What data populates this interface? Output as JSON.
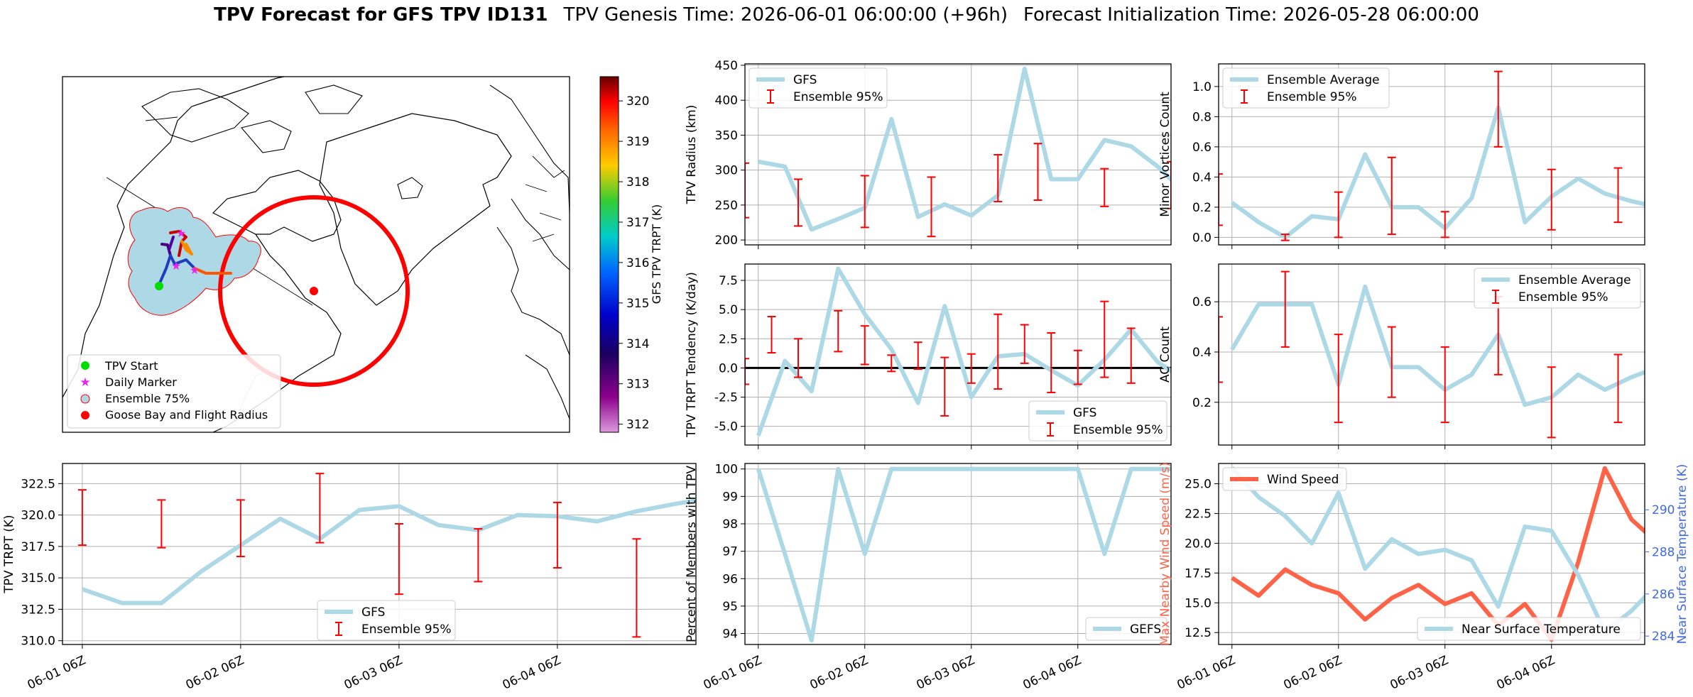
{
  "title": {
    "main": "TPV Forecast for GFS TPV ID131",
    "genesis": "TPV Genesis Time: 2026-06-01 06:00:00 (+96h)",
    "init": "Forecast Initialization Time: 2026-05-28 06:00:00"
  },
  "time_ticks": [
    "06-01 06Z",
    "06-02 06Z",
    "06-03 06Z",
    "06-04 06Z"
  ],
  "map": {
    "legend": [
      "TPV Start",
      "Daily Marker",
      "Ensemble 75%",
      "Goose Bay and Flight Radius"
    ],
    "colors": {
      "start": "#00dd00",
      "marker": "#ee22ee",
      "ensemble": "#add8e6",
      "goose_bay": "#ff0000"
    },
    "colorbar": {
      "label": "GFS TPV TRPT (K)",
      "ticks": [
        312,
        313,
        314,
        315,
        316,
        317,
        318,
        319,
        320
      ],
      "range": [
        311.8,
        320.6
      ]
    }
  },
  "chart_data": [
    {
      "id": "radius",
      "type": "line",
      "ylabel": "TPV Radius (km)",
      "ylim": [
        193,
        452
      ],
      "yticks": [
        200,
        250,
        300,
        350,
        400,
        450
      ],
      "x_hours": [
        0,
        6,
        12,
        18,
        24,
        30,
        36,
        42,
        48,
        54,
        60,
        66,
        72,
        78,
        84,
        90,
        96
      ],
      "series": [
        {
          "name": "GFS",
          "color": "#add8e6",
          "values": [
            312,
            305,
            215,
            230,
            246,
            373,
            233,
            251,
            235,
            264,
            445,
            287,
            287,
            343,
            334,
            305,
            268
          ]
        }
      ],
      "error_bars": {
        "name": "Ensemble 95%",
        "color": "#ff0000",
        "items": [
          [
            -3,
            232,
            310
          ],
          [
            9,
            220,
            287
          ],
          [
            24,
            218,
            292
          ],
          [
            39,
            205,
            290
          ],
          [
            54,
            255,
            322
          ],
          [
            63,
            257,
            338
          ],
          [
            78,
            248,
            302
          ],
          [
            93,
            245,
            312
          ]
        ]
      },
      "legend": "upper-left"
    },
    {
      "id": "minor",
      "type": "line",
      "ylabel": "Minor Vortices Count",
      "ylim": [
        -0.05,
        1.15
      ],
      "yticks": [
        0.0,
        0.2,
        0.4,
        0.6,
        0.8,
        1.0
      ],
      "x_hours": [
        0,
        6,
        12,
        18,
        24,
        30,
        36,
        42,
        48,
        54,
        60,
        66,
        72,
        78,
        84,
        90,
        96
      ],
      "series": [
        {
          "name": "Ensemble Average",
          "color": "#add8e6",
          "values": [
            0.23,
            0.1,
            0.0,
            0.14,
            0.12,
            0.55,
            0.2,
            0.2,
            0.06,
            0.26,
            0.86,
            0.1,
            0.27,
            0.39,
            0.29,
            0.24,
            0.2
          ]
        }
      ],
      "error_bars": {
        "name": "Ensemble 95%",
        "color": "#ff0000",
        "items": [
          [
            -3,
            0.08,
            0.42
          ],
          [
            12,
            -0.02,
            0.02
          ],
          [
            24,
            0.0,
            0.3
          ],
          [
            36,
            0.02,
            0.53
          ],
          [
            48,
            0.0,
            0.17
          ],
          [
            60,
            0.6,
            1.1
          ],
          [
            72,
            0.05,
            0.45
          ],
          [
            87,
            0.1,
            0.46
          ]
        ]
      },
      "legend": "upper-left"
    },
    {
      "id": "tendency",
      "type": "line",
      "ylabel": "TPV TRPT Tendency (K/day)",
      "ylim": [
        -6.6,
        8.9
      ],
      "yticks": [
        -5.0,
        -2.5,
        0.0,
        2.5,
        5.0,
        7.5
      ],
      "zero_line": true,
      "x_hours": [
        0,
        6,
        12,
        18,
        24,
        30,
        36,
        42,
        48,
        54,
        60,
        66,
        72,
        78,
        84,
        90,
        96
      ],
      "series": [
        {
          "name": "GFS",
          "color": "#add8e6",
          "values": [
            -5.8,
            0.6,
            -2.0,
            8.5,
            4.6,
            1.6,
            -3.0,
            5.3,
            -2.5,
            1.0,
            1.2,
            -0.2,
            -1.5,
            0.7,
            3.3,
            0.5,
            -1.0
          ]
        }
      ],
      "error_bars": {
        "name": "Ensemble 95%",
        "color": "#ff0000",
        "items": [
          [
            -3,
            -1.4,
            0.8
          ],
          [
            3,
            1.3,
            4.4
          ],
          [
            9,
            -0.8,
            2.5
          ],
          [
            18,
            1.4,
            4.9
          ],
          [
            24,
            0.3,
            3.6
          ],
          [
            30,
            -0.3,
            1.1
          ],
          [
            36,
            -0.1,
            2.2
          ],
          [
            42,
            -4.1,
            0.9
          ],
          [
            48,
            -1.3,
            1.2
          ],
          [
            54,
            -1.8,
            4.6
          ],
          [
            60,
            0.4,
            3.7
          ],
          [
            66,
            -2.1,
            3.0
          ],
          [
            72,
            -1.4,
            1.5
          ],
          [
            78,
            -0.8,
            5.7
          ],
          [
            84,
            -1.3,
            3.4
          ]
        ]
      },
      "legend": "lower-right"
    },
    {
      "id": "ac",
      "type": "line",
      "ylabel": "AC Count",
      "ylim": [
        0.03,
        0.75
      ],
      "yticks": [
        0.2,
        0.4,
        0.6
      ],
      "x_hours": [
        0,
        6,
        12,
        18,
        24,
        30,
        36,
        42,
        48,
        54,
        60,
        66,
        72,
        78,
        84,
        90,
        96
      ],
      "series": [
        {
          "name": "Ensemble Average",
          "color": "#add8e6",
          "values": [
            0.41,
            0.59,
            0.59,
            0.59,
            0.27,
            0.66,
            0.34,
            0.34,
            0.25,
            0.31,
            0.47,
            0.19,
            0.22,
            0.31,
            0.25,
            0.3,
            0.34
          ]
        }
      ],
      "error_bars": {
        "name": "Ensemble 95%",
        "color": "#ff0000",
        "items": [
          [
            -3,
            0.28,
            0.54
          ],
          [
            12,
            0.42,
            0.72
          ],
          [
            24,
            0.12,
            0.47
          ],
          [
            36,
            0.22,
            0.5
          ],
          [
            48,
            0.12,
            0.42
          ],
          [
            60,
            0.31,
            0.62
          ],
          [
            72,
            0.06,
            0.34
          ],
          [
            87,
            0.12,
            0.39
          ]
        ]
      },
      "legend": "upper-right"
    },
    {
      "id": "trpt",
      "type": "line",
      "ylabel": "TPV TRPT (K)",
      "ylim": [
        309.7,
        324.1
      ],
      "yticks": [
        310.0,
        312.5,
        315.0,
        317.5,
        320.0,
        322.5
      ],
      "x_hours": [
        0,
        6,
        12,
        18,
        24,
        30,
        36,
        42,
        48,
        54,
        60,
        66,
        72,
        78,
        84,
        90,
        96
      ],
      "series": [
        {
          "name": "GFS",
          "color": "#add8e6",
          "values": [
            314.1,
            313.0,
            313.0,
            315.5,
            317.6,
            319.7,
            318.1,
            320.4,
            320.7,
            319.2,
            318.8,
            320.0,
            319.9,
            319.5,
            320.3,
            320.9,
            321.4
          ]
        }
      ],
      "error_bars": {
        "name": "Ensemble 95%",
        "color": "#ff0000",
        "items": [
          [
            0,
            317.6,
            322.0
          ],
          [
            12,
            317.4,
            321.2
          ],
          [
            24,
            316.7,
            321.2
          ],
          [
            36,
            317.8,
            323.3
          ],
          [
            48,
            313.7,
            319.3
          ],
          [
            60,
            314.7,
            318.9
          ],
          [
            72,
            315.8,
            321.0
          ],
          [
            84,
            310.3,
            318.1
          ]
        ]
      },
      "legend": "lower-center"
    },
    {
      "id": "percent",
      "type": "line",
      "ylabel": "Percent of Members with TPV",
      "ylim": [
        93.6,
        100.2
      ],
      "yticks": [
        94,
        95,
        96,
        97,
        98,
        99,
        100
      ],
      "x_hours": [
        0,
        6,
        12,
        18,
        24,
        30,
        36,
        42,
        48,
        54,
        60,
        66,
        72,
        78,
        84,
        90,
        96
      ],
      "series": [
        {
          "name": "GEFS",
          "color": "#add8e6",
          "values": [
            100.0,
            96.9,
            93.75,
            100.0,
            96.9,
            100.0,
            100.0,
            100.0,
            100.0,
            100.0,
            100.0,
            100.0,
            100.0,
            96.9,
            100.0,
            100.0,
            100.0
          ]
        }
      ],
      "legend": "lower-right"
    },
    {
      "id": "wind",
      "type": "line",
      "ylabel": "Max Nearby Wind Speed (m/s)",
      "ylabel2": "Near Surface Temperature (K)",
      "ylim": [
        11.5,
        26.7
      ],
      "yticks": [
        12.5,
        15.0,
        17.5,
        20.0,
        22.5,
        25.0
      ],
      "ylim2": [
        283.6,
        292.2
      ],
      "yticks2": [
        284,
        286,
        288,
        290
      ],
      "x_hours": [
        0,
        6,
        12,
        18,
        24,
        30,
        36,
        42,
        48,
        54,
        60,
        66,
        72,
        78,
        84,
        90,
        96
      ],
      "series": [
        {
          "name": "Wind Speed",
          "color": "#ff6347",
          "axis": "left",
          "values": [
            17.1,
            15.6,
            17.8,
            16.5,
            15.8,
            13.6,
            15.4,
            16.5,
            14.9,
            15.8,
            13.1,
            14.9,
            11.9,
            18.4,
            26.3,
            22.0,
            20.0
          ]
        },
        {
          "name": "Near Surface Temperature",
          "color": "#add8e6",
          "axis": "right",
          "values": [
            292.0,
            290.6,
            289.7,
            288.4,
            290.8,
            287.2,
            288.6,
            287.9,
            288.1,
            287.6,
            285.4,
            289.2,
            289.0,
            286.9,
            284.2,
            285.2,
            286.5
          ]
        }
      ],
      "legends": [
        "upper-left",
        "lower-right"
      ]
    }
  ]
}
